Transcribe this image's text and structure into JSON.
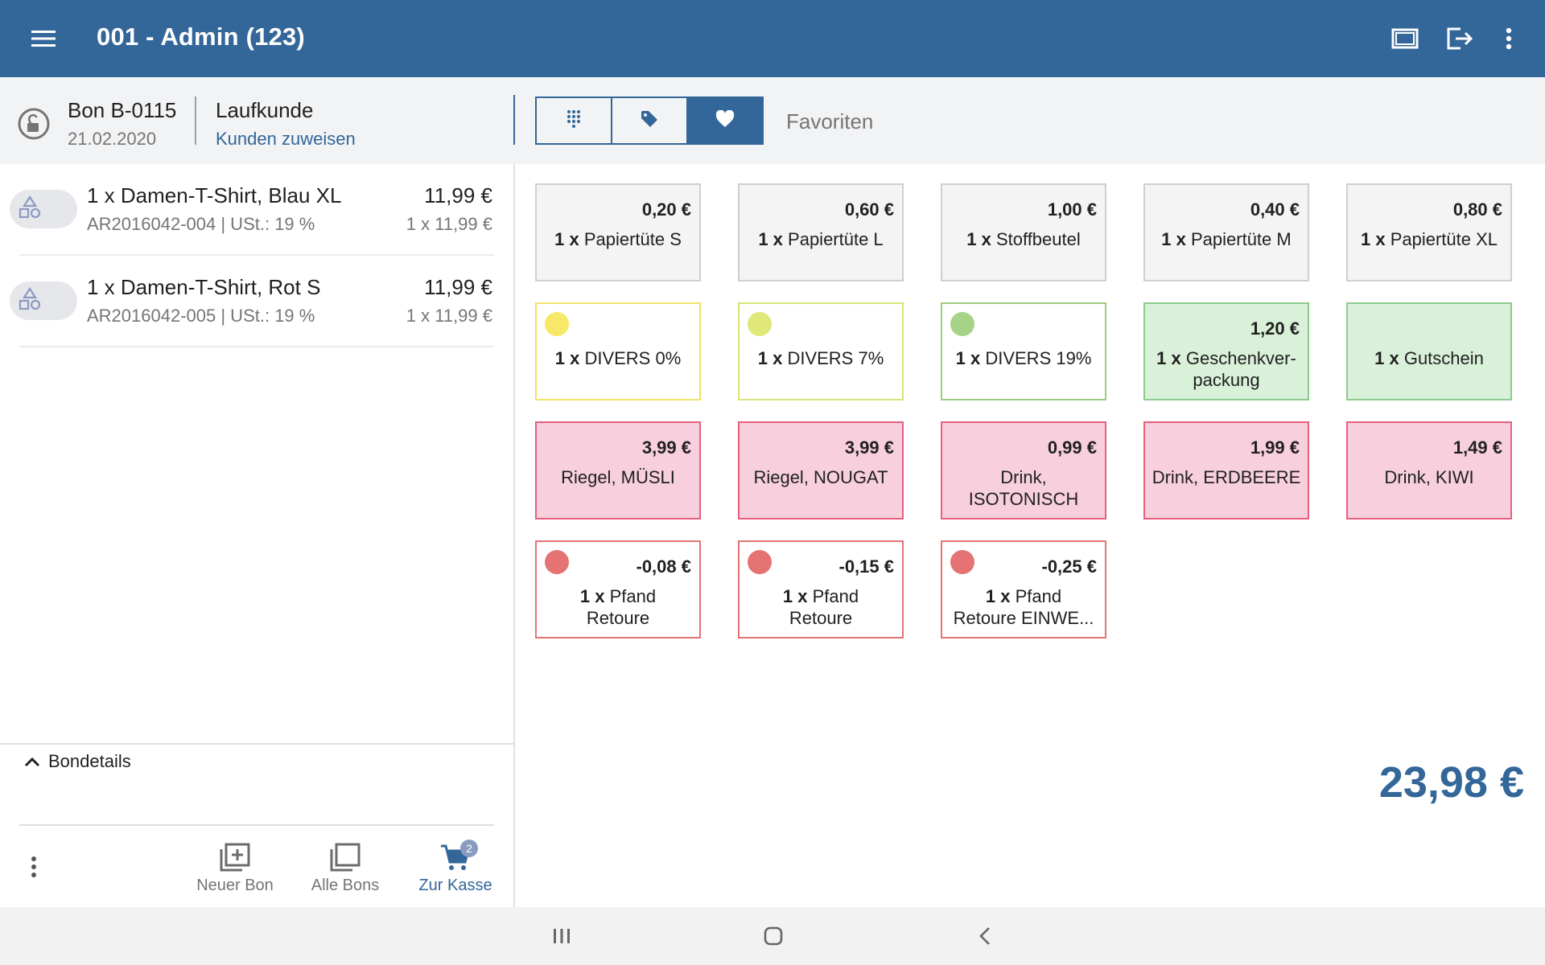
{
  "app": {
    "title": "001 - Admin (123)",
    "accent": "#336699",
    "icons": [
      "hamburger-menu-icon",
      "screen-icon",
      "logout-icon",
      "more-vert-icon"
    ]
  },
  "receipt": {
    "number": "Bon B-0115",
    "date": "21.02.2020",
    "customer": "Laufkunde",
    "assign_link": "Kunden zuweisen"
  },
  "segmented": {
    "label": "Favoriten",
    "buttons": [
      {
        "icon": "keypad-icon",
        "active": false
      },
      {
        "icon": "tag-icon",
        "active": false
      },
      {
        "icon": "heart-icon",
        "active": true
      }
    ]
  },
  "cart": {
    "items": [
      {
        "name": "1 x Damen-T-Shirt, Blau XL",
        "meta": "AR2016042-004 | USt.: 19 %",
        "price": "11,99 €",
        "qty": "1 x 11,99 €"
      },
      {
        "name": "1 x Damen-T-Shirt, Rot S",
        "meta": "AR2016042-005 | USt.: 19 %",
        "price": "11,99 €",
        "qty": "1 x 11,99 €"
      }
    ],
    "details_label": "Bondetails",
    "total": "23,98 €"
  },
  "bottom_nav": {
    "new": "Neuer Bon",
    "all": "Alle Bons",
    "checkout": "Zur Kasse",
    "badge": "2"
  },
  "tiles": [
    {
      "price": "0,20 €",
      "qty": "1 x",
      "name": "Papiertüte S",
      "style": "grey"
    },
    {
      "price": "0,60 €",
      "qty": "1 x",
      "name": "Papiertüte L",
      "style": "grey"
    },
    {
      "price": "1,00 €",
      "qty": "1 x",
      "name": "Stoffbeutel",
      "style": "grey"
    },
    {
      "price": "0,40 €",
      "qty": "1 x",
      "name": "Papiertüte M",
      "style": "grey"
    },
    {
      "price": "0,80 €",
      "qty": "1 x",
      "name": "Papiertüte XL",
      "style": "grey"
    },
    {
      "price": "",
      "qty": "1 x",
      "name": "DIVERS 0%",
      "style": "yellow",
      "dot": "#f7e967"
    },
    {
      "price": "",
      "qty": "1 x",
      "name": "DIVERS 7%",
      "style": "lime",
      "dot": "#dfe878"
    },
    {
      "price": "",
      "qty": "1 x",
      "name": "DIVERS 19%",
      "style": "greenb",
      "dot": "#a5d387"
    },
    {
      "price": "1,20 €",
      "qty": "1 x",
      "name": "Geschenkver-",
      "name2": "packung",
      "style": "green"
    },
    {
      "price": "",
      "qty": "1 x",
      "name": "Gutschein",
      "style": "green"
    },
    {
      "price": "3,99 €",
      "qty": "",
      "name": "Riegel, MÜSLI",
      "style": "pink"
    },
    {
      "price": "3,99 €",
      "qty": "",
      "name": "Riegel, NOUGAT",
      "style": "pink"
    },
    {
      "price": "0,99 €",
      "qty": "",
      "name": "Drink,",
      "name2": "ISOTONISCH",
      "style": "pink"
    },
    {
      "price": "1,99 €",
      "qty": "",
      "name": "Drink, ERDBEERE",
      "style": "pink"
    },
    {
      "price": "1,49 €",
      "qty": "",
      "name": "Drink, KIWI",
      "style": "pink"
    },
    {
      "price": "-0,08 €",
      "qty": "1 x",
      "name": "Pfand",
      "name2": "Retoure",
      "style": "red",
      "dot": "#e57373"
    },
    {
      "price": "-0,15 €",
      "qty": "1 x",
      "name": "Pfand",
      "name2": "Retoure",
      "style": "red",
      "dot": "#e57373"
    },
    {
      "price": "-0,25 €",
      "qty": "1 x",
      "name": "Pfand",
      "name2": "Retoure EINWE...",
      "style": "red",
      "dot": "#e57373"
    }
  ]
}
